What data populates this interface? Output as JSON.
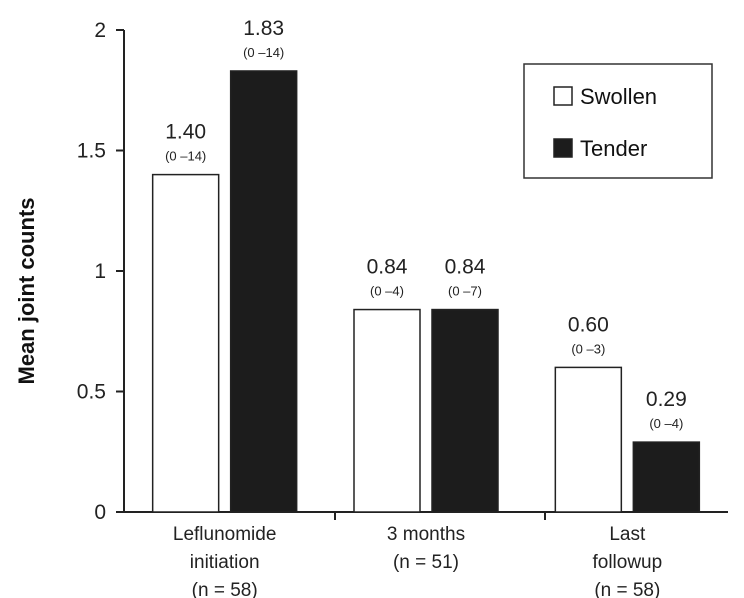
{
  "chart_data": {
    "type": "bar",
    "ylabel": "Mean joint counts",
    "xlabel": "",
    "ylim": [
      0,
      2
    ],
    "yticks": [
      {
        "value": 0,
        "label": "0"
      },
      {
        "value": 0.5,
        "label": "0.5"
      },
      {
        "value": 1,
        "label": "1"
      },
      {
        "value": 1.5,
        "label": "1.5"
      },
      {
        "value": 2,
        "label": "2"
      }
    ],
    "categories": [
      {
        "lines": [
          "Leflunomide",
          "initiation",
          "(n = 58)"
        ]
      },
      {
        "lines": [
          "3 months",
          "(n = 51)"
        ]
      },
      {
        "lines": [
          "Last",
          "followup",
          "(n = 58)"
        ]
      }
    ],
    "series": [
      {
        "name": "Swollen",
        "color": "#ffffff",
        "values": [
          1.4,
          0.84,
          0.6
        ],
        "value_labels": [
          "1.40",
          "0.84",
          "0.60"
        ],
        "range_labels": [
          "(0 –14)",
          "(0 –4)",
          "(0 –3)"
        ]
      },
      {
        "name": "Tender",
        "color": "#1c1c1c",
        "values": [
          1.83,
          0.84,
          0.29
        ],
        "value_labels": [
          "1.83",
          "0.84",
          "0.29"
        ],
        "range_labels": [
          "(0 –14)",
          "(0 –7)",
          "(0 –4)"
        ]
      }
    ],
    "legend": {
      "placement": "top-right"
    },
    "grid": false
  }
}
